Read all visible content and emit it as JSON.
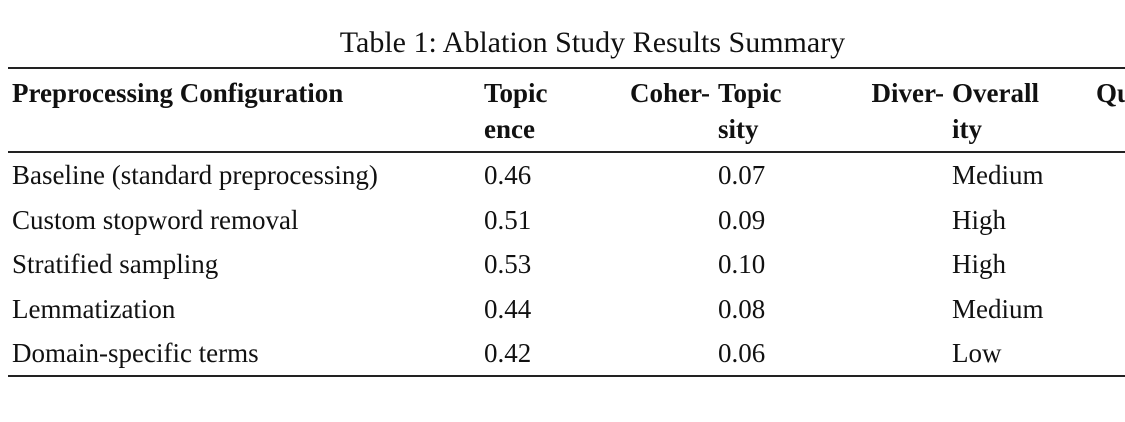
{
  "caption": "Table 1: Ablation Study Results Summary",
  "table": {
    "header": [
      [
        "Preprocessing Configuration"
      ],
      [
        "Topic Coher-",
        "ence"
      ],
      [
        "Topic Diver-",
        "sity"
      ],
      [
        "Overall Qu",
        "ity"
      ]
    ],
    "rows": [
      [
        "Baseline (standard preprocessing)",
        "0.46",
        "0.07",
        "Medium"
      ],
      [
        "Custom stopword removal",
        "0.51",
        "0.09",
        "High"
      ],
      [
        "Stratified sampling",
        "0.53",
        "0.10",
        "High"
      ],
      [
        "Lemmatization",
        "0.44",
        "0.08",
        "Medium"
      ],
      [
        "Domain-specific terms",
        "0.42",
        "0.06",
        "Low"
      ]
    ]
  }
}
